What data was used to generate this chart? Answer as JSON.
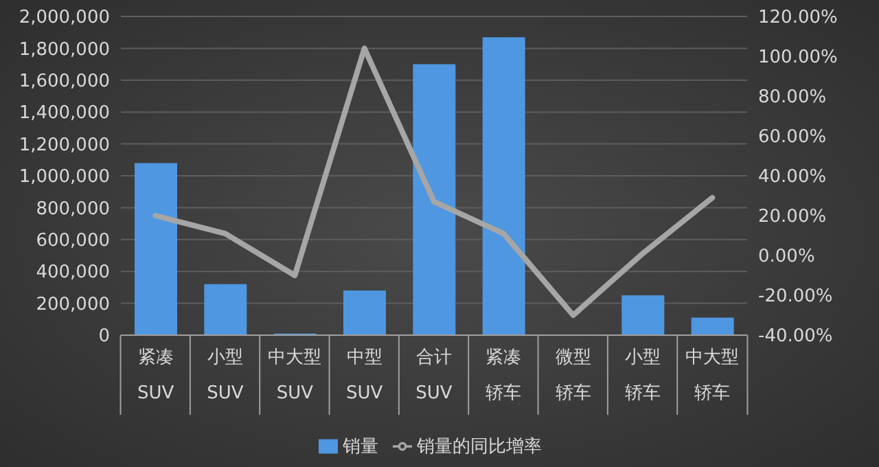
{
  "chart_data": {
    "type": "bar",
    "categories": [
      "紧凑 SUV",
      "小型 SUV",
      "中大型 SUV",
      "中型 SUV",
      "合计 SUV",
      "紧凑轿车",
      "微型轿车",
      "小型轿车",
      "中大型轿车"
    ],
    "series": [
      {
        "name": "销量",
        "color": "#4f97e0",
        "values": [
          1080000,
          320000,
          10000,
          280000,
          1700000,
          1870000,
          0,
          250000,
          110000
        ]
      },
      {
        "name": "销量的同比增率",
        "type": "line",
        "axis": "y2",
        "color": "#a6a6a6",
        "values": [
          20,
          11,
          -10,
          104,
          27,
          11,
          -30,
          1,
          29
        ]
      }
    ],
    "ylim": [
      0,
      2000000
    ],
    "yticks": [
      {
        "value": 0,
        "label": "0"
      },
      {
        "value": 200000,
        "label": "200,000"
      },
      {
        "value": 400000,
        "label": "400,000"
      },
      {
        "value": 600000,
        "label": "600,000"
      },
      {
        "value": 800000,
        "label": "800,000"
      },
      {
        "value": 1000000,
        "label": "1,000,000"
      },
      {
        "value": 1200000,
        "label": "1,200,000"
      },
      {
        "value": 1400000,
        "label": "1,400,000"
      },
      {
        "value": 1600000,
        "label": "1,600,000"
      },
      {
        "value": 1800000,
        "label": "1,800,000"
      },
      {
        "value": 2000000,
        "label": "2,000,000"
      }
    ],
    "y2lim": [
      -40,
      120
    ],
    "y2ticks": [
      {
        "value": -40,
        "label": "-40.00%"
      },
      {
        "value": -20,
        "label": "-20.00%"
      },
      {
        "value": 0,
        "label": "0.00%"
      },
      {
        "value": 20,
        "label": "20.00%"
      },
      {
        "value": 40,
        "label": "40.00%"
      },
      {
        "value": 60,
        "label": "60.00%"
      },
      {
        "value": 80,
        "label": "80.00%"
      },
      {
        "value": 100,
        "label": "100.00%"
      },
      {
        "value": 120,
        "label": "120.00%"
      }
    ],
    "grid": "y",
    "legend": "bottom",
    "marker": "none",
    "line_style": "solid"
  }
}
